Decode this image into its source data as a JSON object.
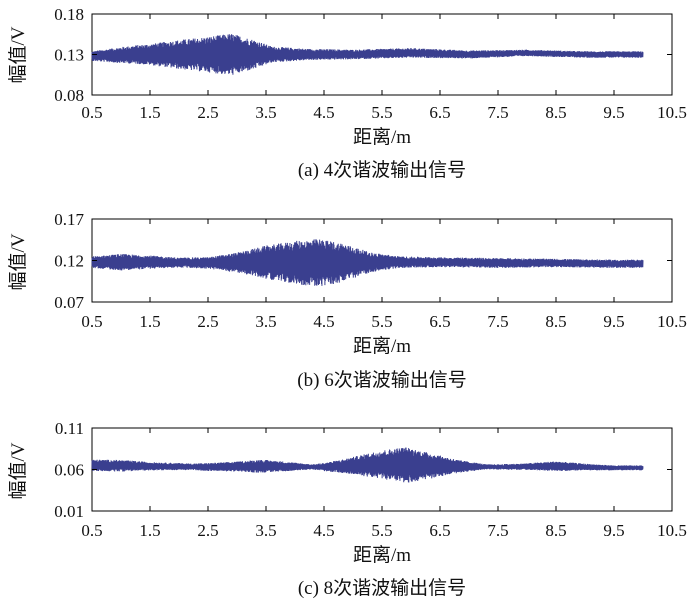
{
  "chart_data": [
    {
      "type": "line",
      "caption": "(a) 4次谐波输出信号",
      "xlabel": "距离/m",
      "ylabel": "幅值/V",
      "xlim": [
        0.5,
        10.5
      ],
      "ylim": [
        0.08,
        0.18
      ],
      "xticks": [
        "0.5",
        "1.5",
        "2.5",
        "3.5",
        "4.5",
        "5.5",
        "6.5",
        "7.5",
        "8.5",
        "9.5",
        "10.5"
      ],
      "yticks": [
        "0.08",
        "0.13",
        "0.18"
      ],
      "color": "#3a3f8f",
      "series": [
        {
          "center": [
            [
              0.5,
              0.128
            ],
            [
              1.3,
              0.13
            ],
            [
              2.0,
              0.13
            ],
            [
              3.0,
              0.13
            ],
            [
              4.0,
              0.13
            ],
            [
              5.0,
              0.13
            ],
            [
              6.0,
              0.132
            ],
            [
              7.0,
              0.13
            ],
            [
              8.0,
              0.132
            ],
            [
              9.0,
              0.13
            ],
            [
              10.0,
              0.13
            ]
          ],
          "half_amplitude": [
            [
              0.5,
              0.006
            ],
            [
              1.0,
              0.01
            ],
            [
              1.5,
              0.013
            ],
            [
              2.0,
              0.018
            ],
            [
              2.5,
              0.022
            ],
            [
              2.9,
              0.026
            ],
            [
              3.3,
              0.018
            ],
            [
              3.6,
              0.01
            ],
            [
              4.2,
              0.007
            ],
            [
              5.0,
              0.006
            ],
            [
              6.0,
              0.006
            ],
            [
              7.0,
              0.005
            ],
            [
              8.0,
              0.004
            ],
            [
              9.0,
              0.004
            ],
            [
              10.0,
              0.004
            ]
          ]
        }
      ]
    },
    {
      "type": "line",
      "caption": "(b) 6次谐波输出信号",
      "xlabel": "距离/m",
      "ylabel": "幅值/V",
      "xlim": [
        0.5,
        10.5
      ],
      "ylim": [
        0.07,
        0.17
      ],
      "xticks": [
        "0.5",
        "1.5",
        "2.5",
        "3.5",
        "4.5",
        "5.5",
        "6.5",
        "7.5",
        "8.5",
        "9.5",
        "10.5"
      ],
      "yticks": [
        "0.07",
        "0.12",
        "0.17"
      ],
      "color": "#3a3f8f",
      "series": [
        {
          "center": [
            [
              0.5,
              0.118
            ],
            [
              1.5,
              0.118
            ],
            [
              2.5,
              0.117
            ],
            [
              3.5,
              0.118
            ],
            [
              4.5,
              0.117
            ],
            [
              5.5,
              0.118
            ],
            [
              6.5,
              0.118
            ],
            [
              7.5,
              0.117
            ],
            [
              8.5,
              0.117
            ],
            [
              9.5,
              0.116
            ],
            [
              10.0,
              0.116
            ]
          ],
          "half_amplitude": [
            [
              0.5,
              0.007
            ],
            [
              1.0,
              0.01
            ],
            [
              1.5,
              0.008
            ],
            [
              2.0,
              0.006
            ],
            [
              2.5,
              0.007
            ],
            [
              3.0,
              0.012
            ],
            [
              3.5,
              0.02
            ],
            [
              4.0,
              0.026
            ],
            [
              4.4,
              0.029
            ],
            [
              4.8,
              0.024
            ],
            [
              5.3,
              0.012
            ],
            [
              5.8,
              0.007
            ],
            [
              6.5,
              0.006
            ],
            [
              7.5,
              0.006
            ],
            [
              8.5,
              0.005
            ],
            [
              9.5,
              0.005
            ],
            [
              10.0,
              0.005
            ]
          ]
        }
      ]
    },
    {
      "type": "line",
      "caption": "(c) 8次谐波输出信号",
      "xlabel": "距离/m",
      "ylabel": "幅值/V",
      "xlim": [
        0.5,
        10.5
      ],
      "ylim": [
        0.01,
        0.11
      ],
      "xticks": [
        "0.5",
        "1.5",
        "2.5",
        "3.5",
        "4.5",
        "5.5",
        "6.5",
        "7.5",
        "8.5",
        "9.5",
        "10.5"
      ],
      "yticks": [
        "0.01",
        "0.06",
        "0.11"
      ],
      "color": "#3a3f8f",
      "series": [
        {
          "center": [
            [
              0.5,
              0.065
            ],
            [
              1.5,
              0.064
            ],
            [
              2.5,
              0.063
            ],
            [
              3.5,
              0.064
            ],
            [
              4.5,
              0.063
            ],
            [
              5.5,
              0.066
            ],
            [
              6.5,
              0.064
            ],
            [
              7.5,
              0.063
            ],
            [
              8.5,
              0.064
            ],
            [
              9.5,
              0.062
            ],
            [
              10.0,
              0.062
            ]
          ],
          "half_amplitude": [
            [
              0.5,
              0.007
            ],
            [
              1.0,
              0.007
            ],
            [
              1.5,
              0.005
            ],
            [
              2.2,
              0.004
            ],
            [
              3.0,
              0.006
            ],
            [
              3.4,
              0.008
            ],
            [
              3.8,
              0.006
            ],
            [
              4.3,
              0.003
            ],
            [
              4.8,
              0.008
            ],
            [
              5.4,
              0.016
            ],
            [
              5.9,
              0.022
            ],
            [
              6.3,
              0.016
            ],
            [
              6.8,
              0.008
            ],
            [
              7.3,
              0.003
            ],
            [
              8.0,
              0.004
            ],
            [
              8.5,
              0.006
            ],
            [
              9.0,
              0.004
            ],
            [
              9.5,
              0.003
            ],
            [
              10.0,
              0.003
            ]
          ]
        }
      ]
    }
  ]
}
